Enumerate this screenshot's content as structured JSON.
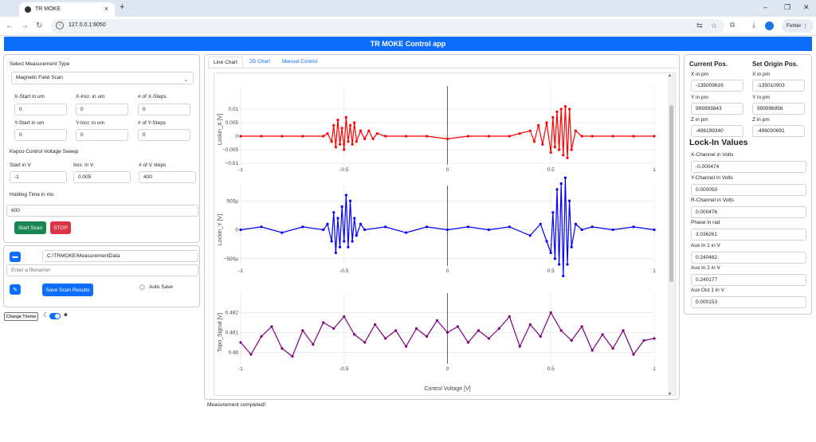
{
  "browser": {
    "tab_title": "TR MOKE",
    "url": "127.0.0.1:8050",
    "profile_label": "Fehler"
  },
  "app": {
    "title": "TR MOKE Control app"
  },
  "left": {
    "measurement_type_label": "Select Measurement Type",
    "measurement_type_value": "Magnetic Field Scan",
    "x_start_label": "X-Start in um",
    "x_start_value": "0",
    "x_incr_label": "X-Incr. in um",
    "x_incr_value": "0",
    "x_steps_label": "# of X-Steps",
    "x_steps_value": "0",
    "y_start_label": "Y-Start in um",
    "y_start_value": "0",
    "y_incr_label": "Y-Incr. in um",
    "y_incr_value": "0",
    "y_steps_label": "# of Y-Steps",
    "y_steps_value": "0",
    "kepco_label": "Kepco Control Voltage Sweep",
    "start_v_label": "Start in V",
    "start_v_value": "-1",
    "incr_v_label": "Incr. in V",
    "incr_v_value": "0.005",
    "v_steps_label": "# of V steps",
    "v_steps_value": "400",
    "holding_label": "Holding Time in ms",
    "holding_value": "600",
    "start_scan": "Start Scan",
    "stop": "STOP",
    "path_value": "C:/TRMOKE/MeasurementData",
    "filename_placeholder": "Enter a filename!",
    "save_results": "Save Scan Results",
    "auto_save": "Auto Save",
    "change_theme": "Change Theme"
  },
  "center": {
    "tabs": [
      "Line Chart",
      "2D Chart",
      "Manual Control"
    ],
    "status": "Measurement completed!"
  },
  "right": {
    "current_pos": "Current Pos.",
    "set_origin": "Set Origin Pos.",
    "x_label": "X in pm",
    "x_current": "-135009616",
    "x_origin": "-135010903",
    "y_label": "Y in pm",
    "y_current": "999993843",
    "y_origin": "999996956",
    "z_label": "Z in pm",
    "z_current": "-496199340",
    "z_origin": "-496000691",
    "lockin_title": "Lock-In Values",
    "x_channel_label": "X-Channel in Volts",
    "x_channel": "-0.000474",
    "y_channel_label": "Y-Channel in Volts",
    "y_channel": "0.000050",
    "r_channel_label": "R-Channel in Volts",
    "r_channel": "0.000476",
    "phase_label": "Phase in rad",
    "phase": "3.036261",
    "aux_in1_label": "Aux In 1 in V",
    "aux_in1": "0.240482",
    "aux_in2_label": "Aux In 2 in V",
    "aux_in2": "0.240177",
    "aux_out1_label": "Aux Out 1 in V",
    "aux_out1": "0.000153"
  },
  "colors": {
    "primary": "#0d6efd",
    "success": "#198754",
    "danger": "#dc3545",
    "lockin_x": "#ff0000",
    "lockin_y": "#0000ff",
    "topo": "#800080"
  },
  "chart_data": [
    {
      "type": "line",
      "title": "",
      "xlabel": "",
      "ylabel": "Lockin_X [V]",
      "xlim": [
        -1,
        1
      ],
      "ylim": [
        -0.01,
        0.015
      ],
      "xticks": [
        "-1",
        "-0.5",
        "0",
        "0.5",
        "1"
      ],
      "yticks": [
        "−0.01",
        "−0.005",
        "0",
        "0.005",
        "0.01"
      ],
      "series": [
        {
          "color": "#ff0000",
          "x": [
            -1,
            -0.9,
            -0.8,
            -0.7,
            -0.6,
            -0.58,
            -0.56,
            -0.55,
            -0.54,
            -0.53,
            -0.52,
            -0.51,
            -0.5,
            -0.49,
            -0.48,
            -0.47,
            -0.46,
            -0.45,
            -0.44,
            -0.42,
            -0.4,
            -0.38,
            -0.36,
            -0.34,
            -0.3,
            -0.2,
            -0.1,
            0,
            0.1,
            0.2,
            0.3,
            0.35,
            0.4,
            0.42,
            0.44,
            0.46,
            0.48,
            0.5,
            0.51,
            0.52,
            0.53,
            0.54,
            0.55,
            0.56,
            0.57,
            0.58,
            0.59,
            0.6,
            0.62,
            0.65,
            0.7,
            0.8,
            0.9,
            1
          ],
          "y": [
            0,
            0,
            0,
            0,
            0,
            0.001,
            -0.002,
            0.004,
            -0.004,
            0.006,
            -0.003,
            0.003,
            -0.005,
            0.007,
            -0.002,
            0.004,
            -0.003,
            0.005,
            -0.002,
            0.002,
            -0.001,
            0.002,
            -0.001,
            0.001,
            0,
            0,
            0,
            -0.001,
            0,
            0,
            0,
            0.001,
            0.002,
            -0.002,
            0.004,
            -0.003,
            0.005,
            -0.006,
            0.007,
            -0.004,
            0.009,
            -0.005,
            0.01,
            -0.007,
            0.011,
            -0.008,
            0.01,
            -0.005,
            0.002,
            0,
            0,
            0,
            0,
            0
          ]
        }
      ]
    },
    {
      "type": "line",
      "title": "",
      "xlabel": "",
      "ylabel": "Lockin_Y [V]",
      "xlim": [
        -1,
        1
      ],
      "ylim": [
        -0.0006,
        0.0006
      ],
      "xticks": [
        "-1",
        "-0.5",
        "0",
        "0.5",
        "1"
      ],
      "yticks": [
        "−500μ",
        "0",
        "500μ"
      ],
      "series": [
        {
          "color": "#0000ff",
          "x": [
            -1,
            -0.9,
            -0.8,
            -0.7,
            -0.6,
            -0.58,
            -0.56,
            -0.55,
            -0.54,
            -0.53,
            -0.52,
            -0.51,
            -0.5,
            -0.49,
            -0.48,
            -0.47,
            -0.46,
            -0.45,
            -0.44,
            -0.42,
            -0.4,
            -0.3,
            -0.2,
            -0.1,
            0,
            0.1,
            0.2,
            0.3,
            0.4,
            0.45,
            0.48,
            0.5,
            0.51,
            0.52,
            0.53,
            0.54,
            0.55,
            0.56,
            0.57,
            0.58,
            0.59,
            0.6,
            0.62,
            0.65,
            0.7,
            0.8,
            0.9,
            1
          ],
          "y": [
            0,
            5e-05,
            -5e-05,
            5e-05,
            0,
            0.0001,
            -0.0002,
            0.0003,
            -0.0004,
            0.0002,
            -0.0003,
            0.0004,
            -0.0002,
            0.0006,
            -0.0003,
            0.0005,
            -0.0002,
            0.0002,
            -0.0001,
            0.0001,
            0,
            5e-05,
            -5e-05,
            5e-05,
            0,
            5e-05,
            0,
            5e-05,
            -0.0001,
            0.0001,
            -0.0002,
            -0.0004,
            0.0003,
            -0.0005,
            0.0007,
            -0.0006,
            0.0008,
            -0.0008,
            0.0009,
            -0.0006,
            0.0005,
            -0.0003,
            0.0001,
            0,
            5e-05,
            0,
            5e-05,
            0
          ]
        }
      ]
    },
    {
      "type": "line",
      "title": "",
      "xlabel": "Control Voltage [V]",
      "ylabel": "Topo_Signal [V]",
      "xlim": [
        -1,
        1
      ],
      "ylim": [
        0.4795,
        0.4825
      ],
      "xticks": [
        "-1",
        "-0.5",
        "0",
        "0.5",
        "1"
      ],
      "yticks": [
        "0.48",
        "0.481",
        "0.482"
      ],
      "series": [
        {
          "color": "#800080",
          "x": [
            -1,
            -0.95,
            -0.9,
            -0.85,
            -0.8,
            -0.75,
            -0.7,
            -0.65,
            -0.6,
            -0.55,
            -0.5,
            -0.45,
            -0.4,
            -0.35,
            -0.3,
            -0.25,
            -0.2,
            -0.15,
            -0.1,
            -0.05,
            0,
            0.05,
            0.1,
            0.15,
            0.2,
            0.25,
            0.3,
            0.35,
            0.4,
            0.45,
            0.5,
            0.55,
            0.6,
            0.65,
            0.7,
            0.75,
            0.8,
            0.85,
            0.9,
            0.95,
            1
          ],
          "y": [
            0.4805,
            0.4799,
            0.4808,
            0.4813,
            0.4802,
            0.4798,
            0.4811,
            0.4804,
            0.4815,
            0.4812,
            0.4818,
            0.4809,
            0.4805,
            0.4814,
            0.4807,
            0.4811,
            0.4803,
            0.4812,
            0.4808,
            0.4816,
            0.481,
            0.4813,
            0.4805,
            0.4811,
            0.4807,
            0.4812,
            0.4818,
            0.4803,
            0.4814,
            0.4808,
            0.482,
            0.4811,
            0.4806,
            0.4813,
            0.4801,
            0.4809,
            0.4802,
            0.4811,
            0.4799,
            0.4806,
            0.4807
          ]
        }
      ]
    }
  ]
}
